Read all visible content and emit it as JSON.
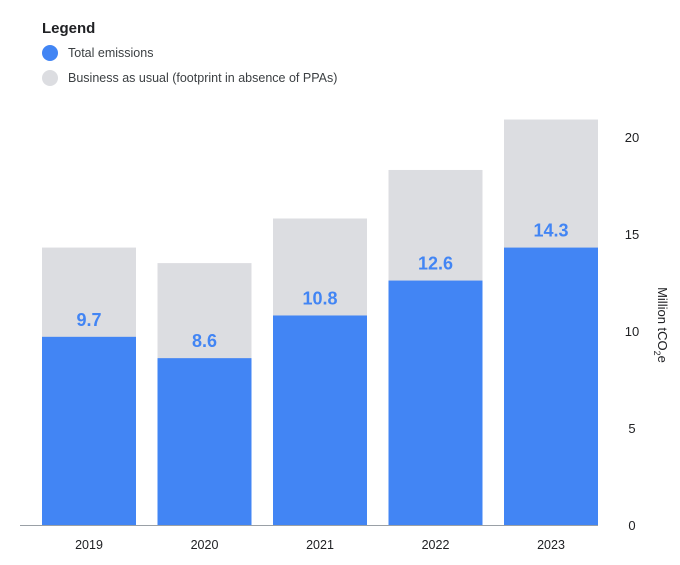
{
  "chart_data": {
    "type": "bar",
    "stacking": "overlay",
    "legend_title": "Legend",
    "categories": [
      "2019",
      "2020",
      "2021",
      "2022",
      "2023"
    ],
    "series": [
      {
        "name": "Total emissions",
        "color": "#4285f4",
        "values": [
          9.7,
          8.6,
          10.8,
          12.6,
          14.3
        ],
        "labels": [
          "9.7",
          "8.6",
          "10.8",
          "12.6",
          "14.3"
        ]
      },
      {
        "name": "Business as usual (footprint in absence of PPAs)",
        "color": "#dcdde1",
        "values": [
          14.3,
          13.5,
          15.8,
          18.3,
          20.9
        ]
      }
    ],
    "ylabel": "Million tCO2e",
    "ylabel_main": "Million tCO",
    "ylabel_sub": "2",
    "ylabel_end": "e",
    "ylim": [
      0,
      20.9
    ],
    "yticks": [
      0,
      5,
      10,
      15,
      20
    ],
    "y_axis_side": "right",
    "legend_position": "top-left",
    "grid": false
  }
}
